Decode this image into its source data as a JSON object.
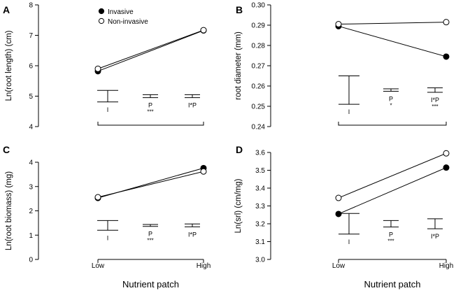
{
  "figure": {
    "xlabel": "Nutrient patch",
    "legend": [
      {
        "label": "Invasive",
        "marker": "filled"
      },
      {
        "label": "Non-invasive",
        "marker": "open"
      }
    ]
  },
  "chart_data": [
    {
      "letter": "A",
      "type": "line",
      "ylabel": "Ln(root length) (cm)",
      "ylim": [
        4,
        8
      ],
      "yticks": [
        4,
        5,
        6,
        7,
        8
      ],
      "ytick_labels": [
        "4",
        "5",
        "6",
        "7",
        "8"
      ],
      "xlabel": "",
      "x_tick_labels": [],
      "categories": [
        "Low",
        "High"
      ],
      "series": [
        {
          "name": "Invasive",
          "marker": "filled",
          "values": [
            5.82,
            7.16
          ]
        },
        {
          "name": "Non-invasive",
          "marker": "open",
          "values": [
            5.9,
            7.17
          ]
        }
      ],
      "error_bars": [
        {
          "label": "I",
          "center": 5.0,
          "half_width": 0.19,
          "sig": ""
        },
        {
          "label": "P",
          "center": 5.0,
          "half_width": 0.05,
          "sig": "***"
        },
        {
          "label": "I*P",
          "center": 5.0,
          "half_width": 0.05,
          "sig": ""
        }
      ],
      "legend_shown": true
    },
    {
      "letter": "B",
      "type": "line",
      "ylabel": "root diameter (mm)",
      "ylim": [
        0.24,
        0.3
      ],
      "yticks": [
        0.24,
        0.25,
        0.26,
        0.27,
        0.28,
        0.29,
        0.3
      ],
      "ytick_labels": [
        "0.24",
        "0.25",
        "0.26",
        "0.27",
        "0.28",
        "0.29",
        "0.30"
      ],
      "xlabel": "",
      "x_tick_labels": [],
      "categories": [
        "Low",
        "High"
      ],
      "series": [
        {
          "name": "Invasive",
          "marker": "filled",
          "values": [
            0.2895,
            0.2745
          ]
        },
        {
          "name": "Non-invasive",
          "marker": "open",
          "values": [
            0.2905,
            0.2915
          ]
        }
      ],
      "error_bars": [
        {
          "label": "I",
          "center": 0.258,
          "half_width": 0.007,
          "sig": ""
        },
        {
          "label": "P",
          "center": 0.258,
          "half_width": 0.0006,
          "sig": "*"
        },
        {
          "label": "I*P",
          "center": 0.258,
          "half_width": 0.0011,
          "sig": "***"
        }
      ],
      "legend_shown": false
    },
    {
      "letter": "C",
      "type": "line",
      "ylabel": "Ln(root biomass) (mg)",
      "ylim": [
        0,
        4
      ],
      "yticks": [
        0,
        1,
        2,
        3,
        4
      ],
      "ytick_labels": [
        "0",
        "1",
        "2",
        "3",
        "4"
      ],
      "xlabel": "Nutrient patch",
      "x_tick_labels": [
        "Low",
        "High"
      ],
      "categories": [
        "Low",
        "High"
      ],
      "series": [
        {
          "name": "Invasive",
          "marker": "filled",
          "values": [
            2.53,
            3.76
          ]
        },
        {
          "name": "Non-invasive",
          "marker": "open",
          "values": [
            2.56,
            3.62
          ]
        }
      ],
      "error_bars": [
        {
          "label": "I",
          "center": 1.4,
          "half_width": 0.2,
          "sig": ""
        },
        {
          "label": "P",
          "center": 1.4,
          "half_width": 0.04,
          "sig": "***"
        },
        {
          "label": "I*P",
          "center": 1.4,
          "half_width": 0.06,
          "sig": ""
        }
      ],
      "legend_shown": false
    },
    {
      "letter": "D",
      "type": "line",
      "ylabel": "Ln(srl) (cm/mg)",
      "ylim": [
        3.0,
        3.6
      ],
      "yticks": [
        3.0,
        3.1,
        3.2,
        3.3,
        3.4,
        3.5,
        3.6
      ],
      "ytick_labels": [
        "3.0",
        "3.1",
        "3.2",
        "3.3",
        "3.4",
        "3.5",
        "3.6"
      ],
      "xlabel": "Nutrient patch",
      "x_tick_labels": [
        "Low",
        "High"
      ],
      "categories": [
        "Low",
        "High"
      ],
      "series": [
        {
          "name": "Invasive",
          "marker": "filled",
          "values": [
            3.255,
            3.515
          ]
        },
        {
          "name": "Non-invasive",
          "marker": "open",
          "values": [
            3.345,
            3.595
          ]
        }
      ],
      "error_bars": [
        {
          "label": "I",
          "center": 3.2,
          "half_width": 0.058,
          "sig": ""
        },
        {
          "label": "P",
          "center": 3.2,
          "half_width": 0.018,
          "sig": "***"
        },
        {
          "label": "I*P",
          "center": 3.2,
          "half_width": 0.028,
          "sig": ""
        }
      ],
      "legend_shown": false
    }
  ]
}
